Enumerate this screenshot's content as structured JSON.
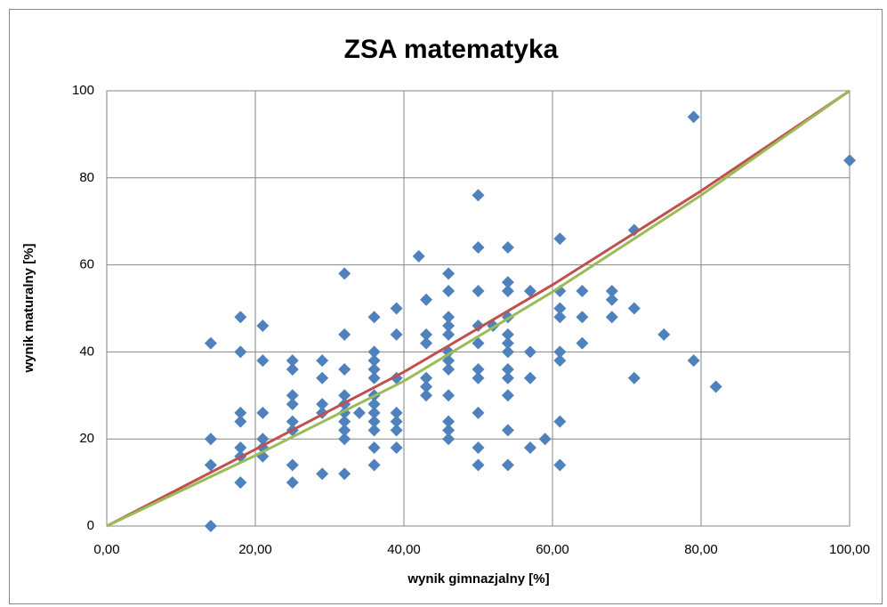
{
  "chart_data": {
    "type": "scatter",
    "title": "ZSA matematyka",
    "xlabel": "wynik gimnazjalny  [%]",
    "ylabel": "wynik maturalny  [%]",
    "xlim": [
      0,
      100
    ],
    "ylim": [
      0,
      100
    ],
    "xticks": [
      {
        "value": 0,
        "label": "0,00"
      },
      {
        "value": 20,
        "label": "20,00"
      },
      {
        "value": 40,
        "label": "40,00"
      },
      {
        "value": 60,
        "label": "60,00"
      },
      {
        "value": 80,
        "label": "80,00"
      },
      {
        "value": 100,
        "label": "100,00"
      }
    ],
    "yticks": [
      0,
      20,
      40,
      60,
      80,
      100
    ],
    "grid": true,
    "series": [
      {
        "mode": "markers",
        "color": "#4f81bd",
        "x": [
          14,
          14,
          14,
          14,
          18,
          18,
          18,
          18,
          18,
          18,
          18,
          21,
          21,
          21,
          21,
          21,
          21,
          25,
          25,
          25,
          25,
          25,
          25,
          25,
          25,
          29,
          29,
          29,
          29,
          29,
          32,
          32,
          32,
          32,
          32,
          32,
          32,
          32,
          32,
          32,
          34,
          36,
          36,
          36,
          36,
          36,
          36,
          36,
          36,
          36,
          36,
          36,
          36,
          39,
          39,
          39,
          39,
          39,
          39,
          39,
          42,
          43,
          43,
          43,
          43,
          43,
          43,
          46,
          46,
          46,
          46,
          46,
          46,
          46,
          46,
          46,
          46,
          46,
          46,
          50,
          50,
          50,
          50,
          50,
          50,
          50,
          50,
          50,
          50,
          52,
          54,
          54,
          54,
          54,
          54,
          54,
          54,
          54,
          54,
          54,
          54,
          54,
          57,
          57,
          57,
          57,
          59,
          61,
          61,
          61,
          61,
          61,
          61,
          61,
          61,
          64,
          64,
          64,
          68,
          68,
          68,
          71,
          71,
          71,
          75,
          79,
          79,
          82,
          100
        ],
        "values": [
          42,
          20,
          14,
          0,
          48,
          40,
          26,
          24,
          18,
          16,
          10,
          46,
          38,
          26,
          20,
          18,
          16,
          38,
          36,
          30,
          28,
          24,
          22,
          14,
          10,
          38,
          34,
          28,
          26,
          12,
          58,
          44,
          36,
          30,
          28,
          26,
          24,
          22,
          20,
          12,
          26,
          48,
          40,
          38,
          36,
          34,
          30,
          28,
          26,
          24,
          22,
          18,
          14,
          50,
          44,
          34,
          26,
          24,
          22,
          18,
          62,
          52,
          44,
          42,
          34,
          32,
          30,
          58,
          54,
          48,
          46,
          44,
          40,
          38,
          36,
          30,
          24,
          22,
          20,
          76,
          64,
          54,
          46,
          42,
          36,
          34,
          26,
          18,
          14,
          46,
          64,
          56,
          54,
          48,
          44,
          42,
          40,
          36,
          34,
          30,
          22,
          14,
          54,
          40,
          34,
          18,
          20,
          66,
          54,
          50,
          48,
          40,
          38,
          24,
          14,
          54,
          48,
          42,
          54,
          52,
          48,
          68,
          50,
          34,
          44,
          94,
          38,
          32,
          84
        ]
      },
      {
        "mode": "lines",
        "color": "#c0504d",
        "x": [
          0,
          20,
          40,
          60,
          80,
          100
        ],
        "values": [
          0,
          17.6,
          35.4,
          55.4,
          77,
          100
        ]
      },
      {
        "mode": "lines",
        "color": "#9bbb59",
        "x": [
          0,
          20,
          40,
          60,
          80,
          100
        ],
        "values": [
          0,
          16.2,
          33.3,
          53.8,
          76,
          100
        ]
      }
    ]
  }
}
